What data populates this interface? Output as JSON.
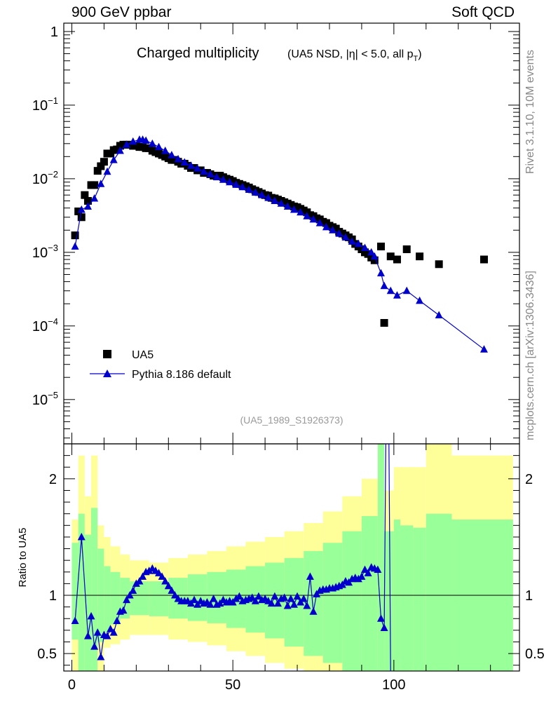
{
  "header": {
    "left_label": "900 GeV ppbar",
    "right_label": "Soft QCD"
  },
  "side": {
    "rivet": "Rivet 3.1.10,  10M events",
    "mcplots": "mcplots.cern.ch [arXiv:1306.3436]"
  },
  "chart_data": {
    "type": "scatter",
    "title": "Charged multiplicity",
    "subtitle": "(UA5 NSD, |η| < 5.0, all p",
    "subtitle_sub": "T",
    "subtitle_close": ")",
    "watermark": "(UA5_1989_S1926373)",
    "ylabel_ratio": "Ratio to UA5",
    "x_ticks": [
      "0",
      "50",
      "100"
    ],
    "xlim": [
      -2.5,
      139
    ],
    "main_y_scale": "log",
    "main_ylim": [
      2.5e-06,
      1.3
    ],
    "main_y_ticks": [
      {
        "value": 1,
        "label": "1"
      },
      {
        "value": 0.1,
        "label": "10",
        "exp": "−1"
      },
      {
        "value": 0.01,
        "label": "10",
        "exp": "−2"
      },
      {
        "value": 0.001,
        "label": "10",
        "exp": "−3"
      },
      {
        "value": 0.0001,
        "label": "10",
        "exp": "−4"
      },
      {
        "value": 1e-05,
        "label": "10",
        "exp": "−5"
      }
    ],
    "ratio_ylim": [
      0.35,
      2.3
    ],
    "ratio_y_ticks": [
      {
        "value": 2,
        "label": "2"
      },
      {
        "value": 1,
        "label": "1"
      },
      {
        "value": 0.5,
        "label": "0.5"
      }
    ],
    "legend": {
      "position": "bottom-left",
      "entries": [
        "UA5",
        "Pythia 8.186 default"
      ]
    },
    "series": [
      {
        "name": "UA5",
        "marker": "square",
        "color": "#000000",
        "x": [
          1,
          2,
          3,
          4,
          5,
          6,
          7,
          8,
          9,
          10,
          11,
          12,
          13,
          14,
          15,
          16,
          17,
          18,
          19,
          20,
          21,
          22,
          23,
          24,
          25,
          26,
          27,
          28,
          29,
          30,
          31,
          32,
          33,
          34,
          35,
          36,
          37,
          38,
          39,
          40,
          41,
          42,
          43,
          44,
          45,
          46,
          47,
          48,
          49,
          50,
          51,
          52,
          53,
          54,
          55,
          56,
          57,
          58,
          59,
          60,
          61,
          62,
          63,
          64,
          65,
          66,
          67,
          68,
          69,
          70,
          71,
          72,
          73,
          74,
          75,
          76,
          77,
          78,
          79,
          80,
          81,
          82,
          83,
          84,
          85,
          86,
          87,
          88,
          89,
          90,
          91,
          92,
          93,
          94,
          96,
          97,
          99,
          101,
          104,
          108,
          114,
          128
        ],
        "y": [
          0.0017,
          0.0036,
          0.003,
          0.006,
          0.005,
          0.0082,
          0.0082,
          0.0128,
          0.0148,
          0.017,
          0.022,
          0.022,
          0.0245,
          0.025,
          0.028,
          0.029,
          0.029,
          0.029,
          0.028,
          0.028,
          0.027,
          0.027,
          0.026,
          0.026,
          0.024,
          0.023,
          0.022,
          0.021,
          0.02,
          0.019,
          0.018,
          0.018,
          0.017,
          0.016,
          0.016,
          0.015,
          0.014,
          0.014,
          0.013,
          0.013,
          0.012,
          0.012,
          0.0115,
          0.011,
          0.011,
          0.011,
          0.0105,
          0.01,
          0.0097,
          0.0093,
          0.0088,
          0.0085,
          0.0082,
          0.0079,
          0.0076,
          0.0072,
          0.0069,
          0.0066,
          0.0063,
          0.006,
          0.0059,
          0.0055,
          0.0054,
          0.0052,
          0.005,
          0.0048,
          0.0046,
          0.0044,
          0.0042,
          0.0041,
          0.0039,
          0.0037,
          0.0035,
          0.0032,
          0.0031,
          0.0029,
          0.0028,
          0.0026,
          0.0025,
          0.0023,
          0.0022,
          0.0021,
          0.0019,
          0.0018,
          0.0017,
          0.0016,
          0.0015,
          0.0013,
          0.0012,
          0.0011,
          0.001,
          0.00095,
          0.00085,
          0.00078,
          0.0012,
          0.00011,
          0.00088,
          0.0008,
          0.0011,
          0.00088,
          0.00069,
          0.0008
        ]
      },
      {
        "name": "Pythia 8.186 default",
        "marker": "triangle",
        "color": "#0000cc",
        "x": [
          1,
          3,
          5,
          7,
          9,
          11,
          13,
          15,
          17,
          19,
          21,
          22,
          23,
          25,
          27,
          29,
          31,
          33,
          35,
          37,
          39,
          41,
          43,
          45,
          47,
          49,
          51,
          53,
          55,
          57,
          59,
          61,
          63,
          65,
          67,
          69,
          71,
          73,
          75,
          77,
          79,
          81,
          83,
          85,
          87,
          89,
          91,
          93,
          94,
          96,
          97,
          99,
          101,
          104,
          108,
          114,
          128
        ],
        "y": [
          0.0012,
          0.0038,
          0.0042,
          0.0054,
          0.0085,
          0.0125,
          0.018,
          0.024,
          0.029,
          0.032,
          0.034,
          0.034,
          0.033,
          0.03,
          0.027,
          0.024,
          0.021,
          0.0185,
          0.0167,
          0.015,
          0.0138,
          0.0125,
          0.0115,
          0.0105,
          0.0097,
          0.009,
          0.0083,
          0.0077,
          0.0071,
          0.0065,
          0.006,
          0.0055,
          0.005,
          0.0046,
          0.0042,
          0.0038,
          0.0035,
          0.0031,
          0.0028,
          0.0025,
          0.0022,
          0.002,
          0.0018,
          0.0016,
          0.0014,
          0.0013,
          0.00115,
          0.001,
          0.00088,
          0.00052,
          0.00035,
          0.0003,
          0.00026,
          0.0003,
          0.00022,
          0.00014,
          4.8e-05
        ]
      }
    ],
    "ratio_series": {
      "name": "Pythia 8.186 default",
      "x": [
        1,
        3,
        5,
        6,
        7,
        8,
        9,
        10,
        11,
        12,
        13,
        14,
        15,
        16,
        17,
        18,
        19,
        20,
        21,
        22,
        23,
        24,
        25,
        26,
        27,
        28,
        29,
        30,
        31,
        32,
        33,
        34,
        35,
        36,
        37,
        38,
        39,
        40,
        41,
        42,
        43,
        44,
        45,
        46,
        47,
        48,
        49,
        50,
        51,
        52,
        53,
        54,
        55,
        56,
        57,
        58,
        59,
        60,
        61,
        62,
        63,
        64,
        65,
        66,
        67,
        68,
        69,
        70,
        71,
        72,
        73,
        74,
        75,
        76,
        77,
        78,
        79,
        80,
        81,
        82,
        83,
        84,
        85,
        86,
        87,
        88,
        89,
        90,
        91,
        92,
        93,
        94,
        95,
        96,
        97,
        98
      ],
      "y": [
        0.78,
        1.5,
        0.65,
        0.82,
        0.56,
        0.68,
        0.47,
        0.66,
        0.65,
        0.71,
        0.68,
        0.78,
        0.86,
        0.87,
        0.96,
        1.0,
        1.04,
        1.1,
        1.12,
        1.16,
        1.2,
        1.21,
        1.23,
        1.21,
        1.19,
        1.16,
        1.12,
        1.08,
        1.04,
        1.0,
        0.97,
        0.95,
        0.95,
        0.95,
        0.93,
        0.96,
        0.92,
        0.95,
        0.93,
        0.94,
        0.92,
        0.97,
        0.92,
        0.93,
        0.96,
        0.94,
        0.95,
        0.94,
        0.97,
        0.99,
        0.95,
        0.96,
        0.97,
        0.98,
        0.95,
        0.99,
        0.96,
        0.97,
        0.95,
        0.93,
        0.99,
        0.93,
        0.97,
        0.98,
        0.91,
        0.97,
        0.92,
        0.99,
        0.94,
        0.97,
        0.91,
        1.16,
        0.86,
        1.01,
        1.04,
        1.05,
        1.05,
        1.06,
        1.06,
        1.07,
        1.08,
        1.09,
        1.12,
        1.11,
        1.14,
        1.15,
        1.14,
        1.16,
        1.22,
        1.19,
        1.24,
        1.23,
        1.22,
        0.8,
        0.72,
        4.0
      ],
      "ref_line": 1
    },
    "ratio_bands": [
      {
        "x": [
          0,
          2
        ],
        "green": [
          0.62,
          1.45
        ],
        "yellow": [
          0.35,
          1.65
        ]
      },
      {
        "x": [
          2,
          4
        ],
        "green": [
          0.35,
          1.7
        ],
        "yellow": [
          0.35,
          2.2
        ]
      },
      {
        "x": [
          4,
          6
        ],
        "green": [
          0.35,
          1.52
        ],
        "yellow": [
          0.35,
          1.85
        ]
      },
      {
        "x": [
          6,
          8
        ],
        "green": [
          0.35,
          1.75
        ],
        "yellow": [
          0.35,
          2.2
        ]
      },
      {
        "x": [
          8,
          10
        ],
        "green": [
          0.6,
          1.4
        ],
        "yellow": [
          0.35,
          1.6
        ]
      },
      {
        "x": [
          10,
          12
        ],
        "green": [
          0.68,
          1.25
        ],
        "yellow": [
          0.55,
          1.5
        ]
      },
      {
        "x": [
          12,
          15
        ],
        "green": [
          0.75,
          1.2
        ],
        "yellow": [
          0.58,
          1.42
        ]
      },
      {
        "x": [
          15,
          18
        ],
        "green": [
          0.8,
          1.15
        ],
        "yellow": [
          0.62,
          1.35
        ]
      },
      {
        "x": [
          18,
          24
        ],
        "green": [
          0.83,
          1.12
        ],
        "yellow": [
          0.66,
          1.3
        ]
      },
      {
        "x": [
          24,
          30
        ],
        "green": [
          0.82,
          1.12
        ],
        "yellow": [
          0.66,
          1.28
        ]
      },
      {
        "x": [
          30,
          36
        ],
        "green": [
          0.8,
          1.15
        ],
        "yellow": [
          0.62,
          1.32
        ]
      },
      {
        "x": [
          36,
          42
        ],
        "green": [
          0.78,
          1.18
        ],
        "yellow": [
          0.6,
          1.35
        ]
      },
      {
        "x": [
          42,
          48
        ],
        "green": [
          0.76,
          1.2
        ],
        "yellow": [
          0.57,
          1.38
        ]
      },
      {
        "x": [
          48,
          54
        ],
        "green": [
          0.72,
          1.22
        ],
        "yellow": [
          0.52,
          1.42
        ]
      },
      {
        "x": [
          54,
          60
        ],
        "green": [
          0.68,
          1.25
        ],
        "yellow": [
          0.48,
          1.46
        ]
      },
      {
        "x": [
          60,
          66
        ],
        "green": [
          0.63,
          1.28
        ],
        "yellow": [
          0.42,
          1.5
        ]
      },
      {
        "x": [
          66,
          72
        ],
        "green": [
          0.56,
          1.32
        ],
        "yellow": [
          0.37,
          1.55
        ]
      },
      {
        "x": [
          72,
          78
        ],
        "green": [
          0.48,
          1.38
        ],
        "yellow": [
          0.35,
          1.62
        ]
      },
      {
        "x": [
          78,
          84
        ],
        "green": [
          0.42,
          1.45
        ],
        "yellow": [
          0.35,
          1.72
        ]
      },
      {
        "x": [
          84,
          90
        ],
        "green": [
          0.35,
          1.55
        ],
        "yellow": [
          0.35,
          1.85
        ]
      },
      {
        "x": [
          90,
          95
        ],
        "green": [
          0.35,
          1.68
        ],
        "yellow": [
          0.35,
          2.0
        ]
      },
      {
        "x": [
          95,
          97
        ],
        "green": [
          0.35,
          2.3
        ],
        "yellow": [
          0.35,
          2.3
        ]
      },
      {
        "x": [
          97,
          100
        ],
        "green": [
          0.35,
          1.55
        ],
        "yellow": [
          0.35,
          1.9
        ]
      },
      {
        "x": [
          100,
          102
        ],
        "green": [
          0.35,
          1.65
        ],
        "yellow": [
          0.35,
          2.1
        ]
      },
      {
        "x": [
          102,
          106
        ],
        "green": [
          0.35,
          1.6
        ],
        "yellow": [
          0.35,
          2.1
        ]
      },
      {
        "x": [
          106,
          110
        ],
        "green": [
          0.35,
          1.58
        ],
        "yellow": [
          0.35,
          2.1
        ]
      },
      {
        "x": [
          110,
          118
        ],
        "green": [
          0.35,
          1.7
        ],
        "yellow": [
          0.35,
          2.3
        ]
      },
      {
        "x": [
          118,
          137
        ],
        "green": [
          0.35,
          1.65
        ],
        "yellow": [
          0.35,
          2.2
        ]
      }
    ]
  }
}
